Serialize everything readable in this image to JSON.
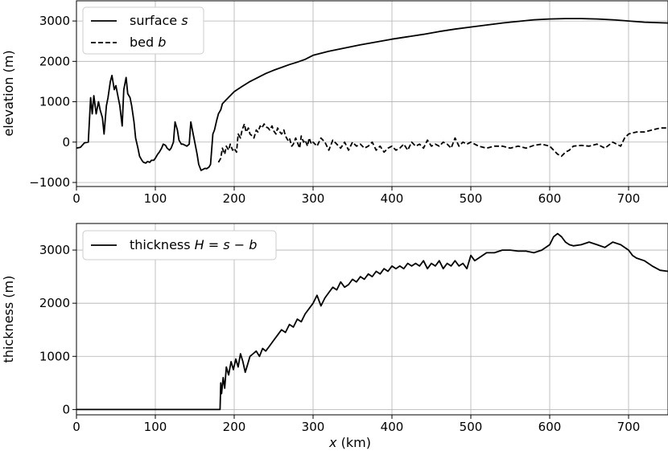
{
  "chart_data": [
    {
      "type": "line",
      "xlabel": "",
      "ylabel": "elevation (m)",
      "xlim": [
        0,
        750
      ],
      "ylim": [
        -1100,
        3500
      ],
      "xticks": [
        0,
        100,
        200,
        300,
        400,
        500,
        600,
        700
      ],
      "yticks": [
        -1000,
        0,
        1000,
        2000,
        3000
      ],
      "xtick_labels": [
        "0",
        "100",
        "200",
        "300",
        "400",
        "500",
        "600",
        "700"
      ],
      "ytick_labels": [
        "−1000",
        "0",
        "1000",
        "2000",
        "3000"
      ],
      "grid": true,
      "legend_position": "top-left",
      "legend": [
        "surface s",
        "bed b"
      ],
      "series": [
        {
          "name": "surface s",
          "style": "solid",
          "x": [
            0,
            5,
            10,
            15,
            18,
            20,
            22,
            25,
            28,
            30,
            33,
            35,
            38,
            40,
            43,
            45,
            48,
            50,
            53,
            55,
            58,
            60,
            63,
            65,
            68,
            70,
            73,
            75,
            78,
            80,
            83,
            85,
            88,
            90,
            93,
            95,
            98,
            100,
            103,
            105,
            108,
            110,
            113,
            115,
            118,
            120,
            123,
            125,
            128,
            130,
            133,
            135,
            138,
            140,
            143,
            145,
            148,
            150,
            153,
            155,
            158,
            160,
            163,
            165,
            168,
            170,
            173,
            175,
            178,
            180,
            183,
            185,
            190,
            195,
            200,
            210,
            220,
            230,
            240,
            250,
            260,
            270,
            280,
            290,
            300,
            320,
            340,
            360,
            380,
            400,
            420,
            440,
            460,
            480,
            500,
            520,
            540,
            560,
            580,
            600,
            620,
            640,
            660,
            680,
            700,
            720,
            750
          ],
          "y": [
            -150,
            -130,
            -20,
            0,
            1100,
            700,
            1150,
            700,
            1000,
            800,
            600,
            200,
            900,
            1100,
            1500,
            1650,
            1300,
            1400,
            1100,
            900,
            400,
            1300,
            1600,
            1200,
            1100,
            900,
            500,
            100,
            -150,
            -350,
            -450,
            -500,
            -520,
            -480,
            -500,
            -450,
            -450,
            -400,
            -300,
            -250,
            -150,
            -50,
            -80,
            -150,
            -200,
            -150,
            0,
            500,
            300,
            50,
            -50,
            -50,
            -80,
            -100,
            -50,
            500,
            200,
            0,
            -300,
            -550,
            -700,
            -680,
            -650,
            -660,
            -620,
            -550,
            200,
            300,
            550,
            700,
            800,
            950,
            1050,
            1150,
            1250,
            1380,
            1500,
            1600,
            1700,
            1780,
            1850,
            1920,
            1980,
            2050,
            2150,
            2250,
            2330,
            2410,
            2480,
            2550,
            2610,
            2670,
            2740,
            2800,
            2850,
            2900,
            2950,
            2990,
            3030,
            3050,
            3060,
            3060,
            3050,
            3030,
            3000,
            2970,
            2950
          ]
        },
        {
          "name": "bed b",
          "style": "dashed",
          "x": [
            180,
            183,
            185,
            188,
            190,
            193,
            195,
            198,
            200,
            203,
            205,
            208,
            210,
            213,
            215,
            218,
            220,
            223,
            225,
            228,
            230,
            233,
            235,
            238,
            240,
            243,
            245,
            248,
            250,
            253,
            255,
            258,
            260,
            263,
            265,
            268,
            270,
            273,
            275,
            278,
            280,
            283,
            285,
            288,
            290,
            293,
            295,
            298,
            300,
            305,
            310,
            315,
            320,
            325,
            330,
            335,
            340,
            345,
            350,
            355,
            360,
            365,
            370,
            375,
            380,
            385,
            390,
            395,
            400,
            405,
            410,
            415,
            420,
            425,
            430,
            435,
            440,
            445,
            450,
            455,
            460,
            465,
            470,
            475,
            480,
            485,
            490,
            495,
            500,
            505,
            510,
            520,
            530,
            540,
            550,
            560,
            570,
            580,
            590,
            600,
            605,
            610,
            615,
            620,
            625,
            630,
            640,
            650,
            660,
            670,
            680,
            690,
            695,
            700,
            710,
            720,
            730,
            740,
            750
          ],
          "y": [
            -500,
            -400,
            -150,
            -300,
            -100,
            -200,
            -50,
            -200,
            -150,
            -250,
            200,
            100,
            300,
            450,
            250,
            350,
            200,
            150,
            100,
            300,
            250,
            400,
            350,
            450,
            380,
            350,
            300,
            400,
            280,
            200,
            350,
            250,
            200,
            300,
            150,
            50,
            100,
            -100,
            -50,
            100,
            0,
            -150,
            150,
            0,
            50,
            -100,
            100,
            -50,
            0,
            -100,
            100,
            0,
            -200,
            50,
            -50,
            -150,
            0,
            -200,
            0,
            -100,
            -50,
            -150,
            -100,
            0,
            -200,
            -100,
            -250,
            -150,
            -100,
            -200,
            -150,
            -50,
            -200,
            0,
            -100,
            -50,
            -150,
            50,
            -100,
            -50,
            -100,
            0,
            -50,
            -150,
            100,
            -100,
            0,
            -50,
            0,
            -50,
            -100,
            -150,
            -100,
            -100,
            -150,
            -100,
            -150,
            -80,
            -50,
            -100,
            -200,
            -300,
            -350,
            -250,
            -200,
            -100,
            -80,
            -100,
            -50,
            -150,
            0,
            -100,
            100,
            200,
            250,
            250,
            300,
            350,
            350
          ]
        }
      ]
    },
    {
      "type": "line",
      "xlabel": "x (km)",
      "ylabel": "thickness (m)",
      "xlim": [
        0,
        750
      ],
      "ylim": [
        -100,
        3500
      ],
      "xticks": [
        0,
        100,
        200,
        300,
        400,
        500,
        600,
        700
      ],
      "yticks": [
        0,
        1000,
        2000,
        3000
      ],
      "xtick_labels": [
        "0",
        "100",
        "200",
        "300",
        "400",
        "500",
        "600",
        "700"
      ],
      "ytick_labels": [
        "0",
        "1000",
        "2000",
        "3000"
      ],
      "grid": true,
      "legend_position": "top-left",
      "legend": [
        "thickness H = s − b"
      ],
      "series": [
        {
          "name": "thickness H = s − b",
          "style": "solid",
          "x": [
            0,
            182,
            183,
            184,
            186,
            188,
            190,
            193,
            196,
            199,
            202,
            205,
            208,
            211,
            214,
            217,
            220,
            224,
            228,
            232,
            236,
            240,
            245,
            250,
            255,
            260,
            265,
            270,
            275,
            280,
            285,
            290,
            295,
            300,
            305,
            310,
            315,
            320,
            325,
            330,
            335,
            340,
            345,
            350,
            355,
            360,
            365,
            370,
            375,
            380,
            385,
            390,
            395,
            400,
            405,
            410,
            415,
            420,
            425,
            430,
            435,
            440,
            445,
            450,
            455,
            460,
            465,
            470,
            475,
            480,
            485,
            490,
            495,
            500,
            505,
            510,
            520,
            530,
            540,
            550,
            560,
            570,
            580,
            590,
            600,
            605,
            610,
            615,
            620,
            625,
            630,
            640,
            650,
            660,
            670,
            680,
            690,
            700,
            705,
            710,
            720,
            730,
            740,
            750
          ],
          "y": [
            0,
            0,
            500,
            300,
            600,
            400,
            800,
            650,
            900,
            750,
            950,
            800,
            1050,
            900,
            700,
            850,
            1000,
            1050,
            1100,
            1000,
            1150,
            1100,
            1200,
            1300,
            1400,
            1500,
            1450,
            1600,
            1550,
            1700,
            1650,
            1800,
            1900,
            2000,
            2150,
            1950,
            2100,
            2200,
            2300,
            2250,
            2400,
            2300,
            2350,
            2450,
            2400,
            2500,
            2450,
            2550,
            2500,
            2600,
            2550,
            2650,
            2600,
            2700,
            2650,
            2700,
            2650,
            2750,
            2700,
            2750,
            2700,
            2800,
            2650,
            2750,
            2700,
            2800,
            2650,
            2750,
            2700,
            2800,
            2700,
            2750,
            2650,
            2900,
            2800,
            2850,
            2950,
            2950,
            3000,
            3000,
            2980,
            2980,
            2950,
            3000,
            3100,
            3250,
            3310,
            3250,
            3150,
            3100,
            3080,
            3100,
            3150,
            3100,
            3050,
            3150,
            3100,
            3000,
            2900,
            2850,
            2800,
            2700,
            2620,
            2600
          ]
        }
      ]
    }
  ]
}
